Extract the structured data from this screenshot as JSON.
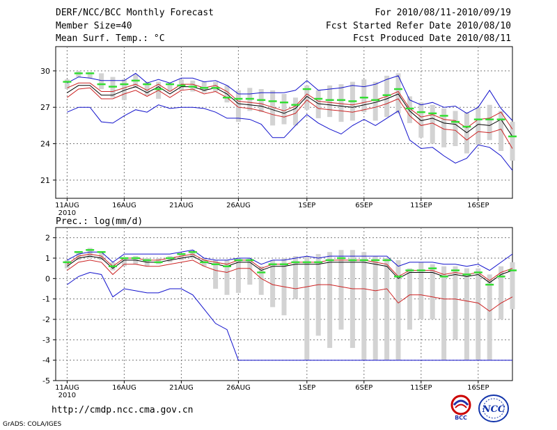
{
  "header": {
    "title": "DERF/NCC/BCC Monthly Forecast",
    "member_size": "Member Size=40",
    "variable": "Mean Surf. Temp.: °C",
    "forecast_period": "For 2010/08/11-2010/09/19",
    "start_date": "Fcst Started Refer Date 2010/08/10",
    "produced_date": "Fcst Produced Date 2010/08/11"
  },
  "footer": {
    "url": "http://cmdp.ncc.cma.gov.cn",
    "credit": "GrADS: COLA/IGES",
    "logo_bcc": "BCC",
    "logo_ncc": "NCC"
  },
  "colors": {
    "box": "#d3d3d3",
    "median": "#33dd33",
    "mean": "#000000",
    "spread_inner": "#cc2222",
    "spread_outer": "#1111cc"
  },
  "chart_data": [
    {
      "type": "line",
      "title": "Mean Surf. Temp.: °C",
      "xlabel": "",
      "ylabel": "°C",
      "ylim": [
        19.5,
        32
      ],
      "yticks": [
        21,
        24,
        27,
        30
      ],
      "xlim": [
        0,
        40
      ],
      "xticks": [
        {
          "day": 1,
          "label": "11AUG",
          "sublabel": "2010"
        },
        {
          "day": 6,
          "label": "16AUG"
        },
        {
          "day": 11,
          "label": "21AUG"
        },
        {
          "day": 16,
          "label": "26AUG"
        },
        {
          "day": 22,
          "label": "1SEP"
        },
        {
          "day": 27,
          "label": "6SEP"
        },
        {
          "day": 32,
          "label": "11SEP"
        },
        {
          "day": 37,
          "label": "16SEP"
        }
      ],
      "days": [
        1,
        2,
        3,
        4,
        5,
        6,
        7,
        8,
        9,
        10,
        11,
        12,
        13,
        14,
        15,
        16,
        17,
        18,
        19,
        20,
        21,
        22,
        23,
        24,
        25,
        26,
        27,
        28,
        29,
        30,
        31,
        32,
        33,
        34,
        35,
        36,
        37,
        38,
        39,
        40
      ],
      "series": [
        {
          "name": "box_low",
          "values": [
            28.5,
            29.5,
            29.4,
            28.5,
            27.8,
            27.6,
            28.6,
            28.0,
            27.7,
            28.3,
            28.4,
            28.3,
            28.2,
            28.3,
            27.4,
            25.8,
            26.7,
            26.6,
            25.5,
            25.6,
            25.5,
            26.8,
            26.1,
            26.2,
            25.8,
            25.9,
            26.6,
            25.9,
            26.2,
            26.5,
            25.7,
            24.5,
            24.0,
            23.7,
            23.8,
            23.2,
            23.9,
            24.3,
            23.4,
            22.6
          ]
        },
        {
          "name": "box_high",
          "values": [
            29.3,
            30.0,
            29.9,
            29.8,
            29.5,
            29.3,
            29.7,
            29.1,
            29.1,
            29.0,
            29.3,
            29.2,
            29.1,
            29.1,
            28.8,
            28.4,
            28.6,
            28.5,
            28.4,
            28.1,
            27.8,
            28.8,
            28.4,
            28.8,
            28.9,
            29.1,
            29.3,
            29.1,
            29.6,
            29.8,
            27.9,
            27.4,
            27.2,
            26.9,
            26.7,
            26.6,
            27.0,
            27.2,
            26.7,
            25.8
          ]
        },
        {
          "name": "median",
          "values": [
            29.1,
            29.8,
            29.8,
            28.9,
            28.7,
            28.9,
            29.2,
            28.9,
            28.5,
            28.9,
            28.8,
            28.7,
            28.6,
            28.6,
            27.8,
            27.7,
            27.7,
            27.6,
            27.5,
            27.4,
            27.2,
            28.5,
            27.7,
            27.6,
            27.6,
            27.5,
            27.8,
            27.6,
            28.0,
            28.5,
            26.9,
            26.6,
            26.5,
            26.3,
            25.8,
            25.4,
            26.0,
            26.0,
            26.0,
            24.6
          ]
        },
        {
          "name": "mean",
          "values": [
            28.2,
            28.8,
            28.8,
            28.0,
            28.0,
            28.4,
            28.7,
            28.2,
            28.7,
            28.1,
            28.7,
            28.7,
            28.4,
            28.6,
            28.1,
            27.3,
            27.2,
            27.1,
            26.8,
            26.5,
            26.9,
            27.9,
            27.3,
            27.2,
            27.1,
            27.0,
            27.2,
            27.4,
            27.7,
            28.1,
            26.7,
            25.9,
            26.1,
            25.7,
            25.6,
            24.9,
            25.6,
            25.5,
            26.0,
            24.6
          ]
        },
        {
          "name": "upper_inner",
          "values": [
            28.6,
            29.0,
            29.0,
            28.3,
            28.3,
            28.6,
            28.9,
            28.4,
            28.9,
            28.3,
            28.9,
            28.9,
            28.6,
            28.8,
            28.3,
            27.5,
            27.4,
            27.3,
            27.0,
            26.7,
            27.1,
            28.1,
            27.5,
            27.4,
            27.3,
            27.2,
            27.4,
            27.6,
            27.9,
            28.3,
            26.9,
            26.2,
            26.4,
            26.0,
            25.9,
            25.3,
            26.0,
            26.1,
            26.6,
            25.2
          ]
        },
        {
          "name": "lower_inner",
          "values": [
            27.8,
            28.5,
            28.6,
            27.7,
            27.7,
            28.1,
            28.4,
            27.9,
            28.4,
            27.8,
            28.4,
            28.5,
            28.1,
            28.3,
            27.8,
            27.0,
            26.9,
            26.7,
            26.4,
            26.2,
            26.5,
            27.6,
            26.9,
            26.8,
            26.7,
            26.6,
            26.8,
            27.0,
            27.3,
            27.7,
            26.3,
            25.5,
            25.7,
            25.2,
            25.1,
            24.3,
            25.0,
            24.9,
            25.2,
            23.6
          ]
        },
        {
          "name": "upper_outer",
          "values": [
            29.0,
            29.5,
            29.4,
            29.2,
            29.2,
            29.2,
            29.8,
            29.0,
            29.3,
            29.0,
            29.4,
            29.4,
            29.1,
            29.2,
            28.8,
            28.1,
            28.1,
            28.2,
            28.2,
            28.2,
            28.4,
            29.2,
            28.4,
            28.5,
            28.6,
            28.8,
            28.7,
            28.9,
            29.3,
            29.6,
            27.6,
            27.2,
            27.4,
            27.0,
            27.1,
            26.5,
            27.0,
            28.4,
            26.9,
            25.9
          ]
        },
        {
          "name": "lower_outer",
          "values": [
            26.6,
            27.0,
            27.0,
            25.8,
            25.7,
            26.3,
            26.8,
            26.6,
            27.2,
            26.9,
            27.0,
            27.0,
            26.9,
            26.6,
            26.1,
            26.1,
            26.0,
            25.6,
            24.5,
            24.5,
            25.5,
            26.4,
            25.7,
            25.2,
            24.8,
            25.5,
            26.0,
            25.5,
            26.1,
            26.7,
            24.3,
            23.6,
            23.7,
            23.0,
            22.4,
            22.8,
            23.9,
            23.7,
            23.0,
            21.8
          ]
        }
      ]
    },
    {
      "type": "line",
      "title": "Prec.: log(mm/d)",
      "xlabel": "",
      "ylabel": "log(mm/d)",
      "ylim": [
        -5,
        2.5
      ],
      "yticks": [
        -5,
        -4,
        -3,
        -2,
        -1,
        0,
        1,
        2
      ],
      "xlim": [
        0,
        40
      ],
      "xticks": [
        {
          "day": 1,
          "label": "11AUG",
          "sublabel": "2010"
        },
        {
          "day": 6,
          "label": "16AUG"
        },
        {
          "day": 11,
          "label": "21AUG"
        },
        {
          "day": 16,
          "label": "26AUG"
        },
        {
          "day": 22,
          "label": "1SEP"
        },
        {
          "day": 27,
          "label": "6SEP"
        },
        {
          "day": 32,
          "label": "11SEP"
        },
        {
          "day": 37,
          "label": "16SEP"
        }
      ],
      "days": [
        1,
        2,
        3,
        4,
        5,
        6,
        7,
        8,
        9,
        10,
        11,
        12,
        13,
        14,
        15,
        16,
        17,
        18,
        19,
        20,
        21,
        22,
        23,
        24,
        25,
        26,
        27,
        28,
        29,
        30,
        31,
        32,
        33,
        34,
        35,
        36,
        37,
        38,
        39,
        40
      ],
      "series": [
        {
          "name": "box_low",
          "values": [
            0.5,
            0.9,
            1.0,
            0.9,
            0.4,
            0.6,
            0.7,
            0.6,
            0.7,
            0.8,
            0.9,
            1.0,
            0.6,
            -0.5,
            -0.8,
            -0.7,
            -0.3,
            -0.8,
            -1.4,
            -1.8,
            -1.0,
            -4.0,
            -2.8,
            -3.4,
            -2.5,
            -3.4,
            -4.0,
            -4.0,
            -4.0,
            -4.0,
            -2.5,
            -2.0,
            -2.0,
            -4.0,
            -3.0,
            -4.0,
            -4.0,
            -4.0,
            -2.0,
            -1.5
          ]
        },
        {
          "name": "box_high",
          "values": [
            0.9,
            1.3,
            1.5,
            1.3,
            0.8,
            1.0,
            1.1,
            1.0,
            1.0,
            1.1,
            1.2,
            1.4,
            1.0,
            0.9,
            0.9,
            1.0,
            1.0,
            0.6,
            0.9,
            1.0,
            1.1,
            1.1,
            1.2,
            1.3,
            1.4,
            1.4,
            1.3,
            1.1,
            1.0,
            0.9,
            0.5,
            0.8,
            0.7,
            0.6,
            0.6,
            0.5,
            0.5,
            0.2,
            0.6,
            0.8
          ]
        },
        {
          "name": "median",
          "values": [
            0.8,
            1.3,
            1.4,
            1.3,
            0.6,
            1.0,
            1.0,
            0.9,
            0.8,
            1.0,
            1.2,
            1.3,
            0.8,
            0.7,
            0.6,
            0.9,
            0.9,
            0.3,
            0.7,
            0.7,
            0.8,
            0.8,
            0.8,
            0.9,
            1.0,
            0.9,
            0.9,
            0.9,
            0.9,
            0.1,
            0.4,
            0.4,
            0.5,
            0.1,
            0.4,
            0.2,
            0.3,
            -0.3,
            0.1,
            0.4
          ]
        },
        {
          "name": "mean",
          "values": [
            0.6,
            1.0,
            1.1,
            1.0,
            0.5,
            0.9,
            0.9,
            0.8,
            0.8,
            0.9,
            1.0,
            1.1,
            0.8,
            0.7,
            0.6,
            0.8,
            0.8,
            0.4,
            0.6,
            0.6,
            0.7,
            0.7,
            0.7,
            0.8,
            0.8,
            0.8,
            0.8,
            0.7,
            0.6,
            0.0,
            0.3,
            0.3,
            0.3,
            0.1,
            0.2,
            0.1,
            0.2,
            -0.2,
            0.2,
            0.4
          ]
        },
        {
          "name": "upper_inner",
          "values": [
            0.7,
            1.1,
            1.2,
            1.1,
            0.6,
            1.0,
            1.0,
            0.9,
            0.9,
            1.0,
            1.1,
            1.2,
            0.9,
            0.8,
            0.7,
            0.9,
            0.9,
            0.5,
            0.7,
            0.7,
            0.8,
            0.8,
            0.8,
            0.9,
            0.9,
            0.9,
            0.9,
            0.8,
            0.7,
            0.1,
            0.4,
            0.4,
            0.4,
            0.2,
            0.3,
            0.2,
            0.3,
            -0.1,
            0.3,
            0.5
          ]
        },
        {
          "name": "lower_inner",
          "values": [
            0.4,
            0.8,
            0.9,
            0.8,
            0.2,
            0.7,
            0.7,
            0.6,
            0.6,
            0.7,
            0.8,
            0.9,
            0.6,
            0.4,
            0.3,
            0.5,
            0.5,
            0.0,
            -0.3,
            -0.4,
            -0.5,
            -0.4,
            -0.3,
            -0.3,
            -0.4,
            -0.5,
            -0.5,
            -0.6,
            -0.5,
            -1.2,
            -0.8,
            -0.8,
            -0.9,
            -1.0,
            -1.0,
            -1.1,
            -1.2,
            -1.6,
            -1.2,
            -0.9
          ]
        },
        {
          "name": "upper_outer",
          "values": [
            0.9,
            1.2,
            1.3,
            1.3,
            0.8,
            1.2,
            1.2,
            1.2,
            1.2,
            1.2,
            1.3,
            1.4,
            1.0,
            0.9,
            0.9,
            1.0,
            1.0,
            0.7,
            0.9,
            0.9,
            1.0,
            1.1,
            1.0,
            1.1,
            1.1,
            1.1,
            1.1,
            1.1,
            1.1,
            0.6,
            0.8,
            0.8,
            0.8,
            0.7,
            0.7,
            0.6,
            0.7,
            0.4,
            0.8,
            1.2
          ]
        },
        {
          "name": "lower_outer",
          "values": [
            -0.3,
            0.1,
            0.3,
            0.2,
            -0.9,
            -0.5,
            -0.6,
            -0.7,
            -0.7,
            -0.5,
            -0.5,
            -0.8,
            -1.5,
            -2.2,
            -2.5,
            -4.0,
            -4.0,
            -4.0,
            -4.0,
            -4.0,
            -4.0,
            -4.0,
            -4.0,
            -4.0,
            -4.0,
            -4.0,
            -4.0,
            -4.0,
            -4.0,
            -4.0,
            -4.0,
            -4.0,
            -4.0,
            -4.0,
            -4.0,
            -4.0,
            -4.0,
            -4.0,
            -4.0,
            -4.0
          ]
        }
      ]
    }
  ]
}
